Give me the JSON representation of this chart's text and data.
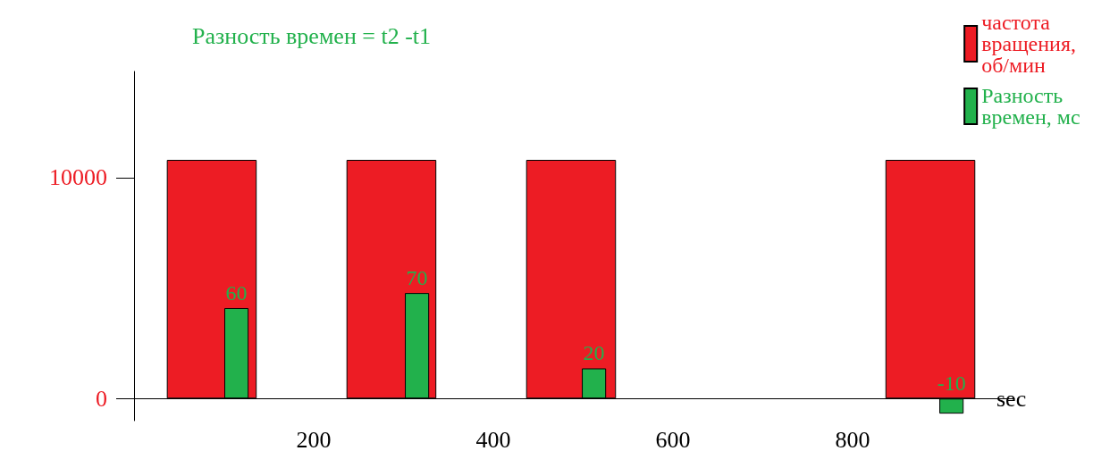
{
  "chart_data": {
    "type": "bar",
    "annotations": [
      "Разность времен = t2 -t1"
    ],
    "xlabel": "sec",
    "xlim": [
      0,
      980
    ],
    "xticks": [
      200,
      400,
      600,
      800
    ],
    "ylim": [
      -1000,
      14800
    ],
    "yticks": [
      0,
      10000
    ],
    "series": [
      {
        "name": "частота вращения, об/мин",
        "color": "#ed1c24",
        "x": [
          50,
          250,
          450,
          850
        ],
        "values": [
          10800,
          10800,
          10800,
          10800
        ]
      },
      {
        "name": "Разность времен, мс",
        "color": "#22b14c",
        "axis": "y2",
        "x": [
          114,
          315,
          512,
          910
        ],
        "values": [
          60,
          70,
          20,
          -10
        ],
        "value_labels": [
          "60",
          "70",
          "20",
          "-10"
        ]
      }
    ],
    "grid": false,
    "legend": "top right"
  }
}
